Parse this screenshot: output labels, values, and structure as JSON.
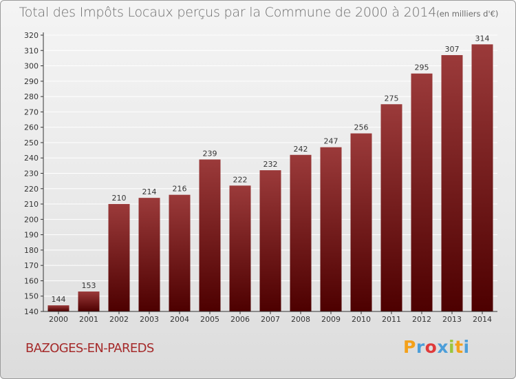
{
  "title": "Total des Impôts Locaux perçus par la Commune de 2000 à 2014",
  "unit_note": "(en milliers d'€)",
  "commune": "BAZOGES-EN-PAREDS",
  "logo": {
    "text": "Proxiti",
    "letters": [
      "P",
      "r",
      "o",
      "x",
      "i",
      "t",
      "i"
    ],
    "colors": [
      "#f4a11a",
      "#4c9ed9",
      "#e03a3a",
      "#4c9ed9",
      "#9bc53d",
      "#f4a11a",
      "#4c9ed9"
    ]
  },
  "colors": {
    "bar_top": "#9b3a3a",
    "bar_bottom": "#4d0000",
    "axis": "#333333",
    "grid": "#ffffff"
  },
  "chart_data": {
    "type": "bar",
    "title": "Total des Impôts Locaux perçus par la Commune de 2000 à 2014",
    "xlabel": "",
    "ylabel": "(en milliers d'€)",
    "categories": [
      "2000",
      "2001",
      "2002",
      "2003",
      "2004",
      "2005",
      "2006",
      "2007",
      "2008",
      "2009",
      "2010",
      "2011",
      "2012",
      "2013",
      "2014"
    ],
    "values": [
      144,
      153,
      210,
      214,
      216,
      239,
      222,
      232,
      242,
      247,
      256,
      275,
      295,
      307,
      314
    ],
    "ylim": [
      140,
      320
    ],
    "yticks": [
      140,
      150,
      160,
      170,
      180,
      190,
      200,
      210,
      220,
      230,
      240,
      250,
      260,
      270,
      280,
      290,
      300,
      310,
      320
    ],
    "grid": true,
    "legend": "none"
  }
}
